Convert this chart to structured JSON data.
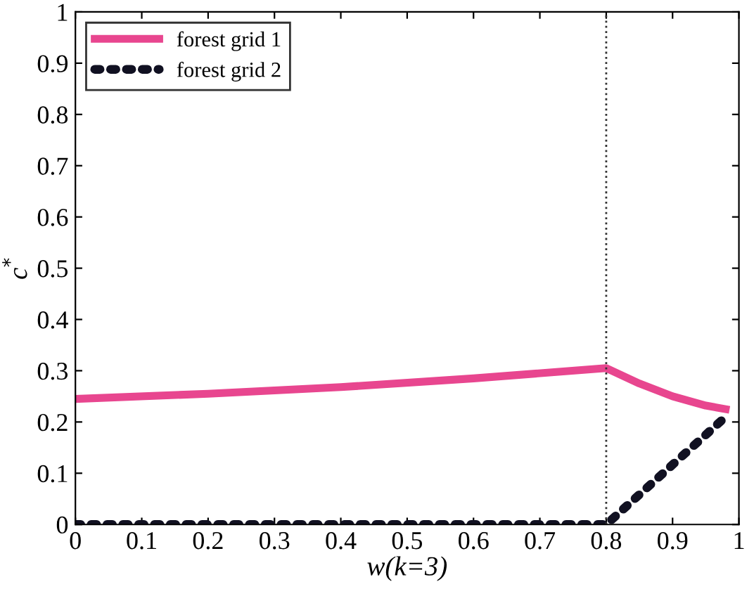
{
  "chart_data": {
    "type": "line",
    "xlabel": "w(k=3)",
    "ylabel": "c$^{*}$",
    "xlim": [
      0,
      1
    ],
    "ylim": [
      0,
      1
    ],
    "xticks": [
      0,
      0.1,
      0.2,
      0.3,
      0.4,
      0.5,
      0.6,
      0.7,
      0.8,
      0.9,
      1
    ],
    "yticks": [
      0,
      0.1,
      0.2,
      0.3,
      0.4,
      0.5,
      0.6,
      0.7,
      0.8,
      0.9,
      1
    ],
    "series": [
      {
        "name": "forest grid 1",
        "color": "#e8468f",
        "line_style": "solid",
        "x": [
          0,
          0.2,
          0.4,
          0.6,
          0.8,
          0.85,
          0.9,
          0.95,
          0.98
        ],
        "values": [
          0.245,
          0.255,
          0.268,
          0.285,
          0.305,
          0.275,
          0.25,
          0.232,
          0.225
        ]
      },
      {
        "name": "forest grid 2",
        "color": "#111122",
        "line_style": "dotted",
        "x": [
          0,
          0.8,
          0.98
        ],
        "values": [
          0,
          0,
          0.21
        ]
      }
    ],
    "ref_lines": [
      {
        "axis": "x",
        "value": 0.8,
        "label": null,
        "color": "#333333",
        "line_style": "dotted"
      }
    ],
    "grid": false,
    "legend": "top left",
    "marker": "none"
  }
}
